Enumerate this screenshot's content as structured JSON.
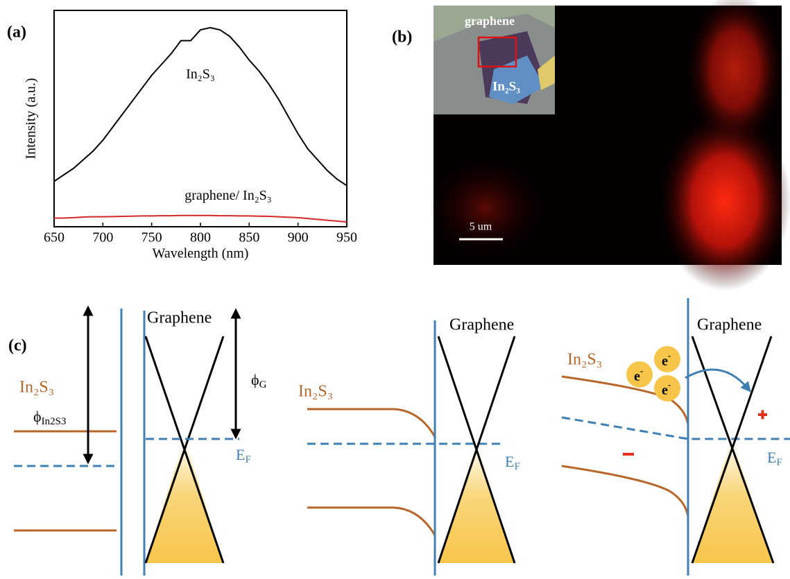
{
  "panel_labels": [
    "(a)",
    "(b)",
    "(c)"
  ],
  "chart_data": {
    "type": "line",
    "xlabel": "Wavelength (nm)",
    "ylabel": "Intensity (a.u.)",
    "x": [
      650,
      660,
      670,
      680,
      690,
      700,
      710,
      720,
      730,
      740,
      750,
      760,
      770,
      780,
      790,
      800,
      810,
      820,
      830,
      840,
      850,
      860,
      870,
      880,
      890,
      900,
      910,
      920,
      930,
      940,
      950
    ],
    "series": [
      {
        "name": "In₂S₃",
        "color": "#000000",
        "values": [
          21,
          24,
          27,
          31,
          35,
          40,
          46,
          52,
          58,
          64,
          70,
          75,
          80,
          86,
          86,
          91,
          92,
          91,
          88,
          83,
          77,
          72,
          66,
          59,
          51,
          43,
          36,
          31,
          26,
          22,
          19
        ]
      },
      {
        "name": "graphene/ In₂S₃",
        "color": "#d62728",
        "values": [
          4,
          4,
          4.2,
          4.5,
          4.6,
          4.6,
          4.7,
          4.8,
          4.9,
          5,
          5,
          5.1,
          5.1,
          5.2,
          5.2,
          5.2,
          5.2,
          5.1,
          5.1,
          5,
          5,
          4.9,
          4.8,
          4.6,
          4.4,
          4.2,
          3.8,
          3.4,
          3,
          2.6,
          2.2
        ]
      }
    ],
    "xlim": [
      650,
      950
    ],
    "xticks": [
      650,
      700,
      750,
      800,
      850,
      900,
      950
    ],
    "ylim": [
      0,
      100
    ]
  },
  "micrograph": {
    "inset_labels": [
      "graphene",
      "In₂S₃"
    ],
    "scale_bar": "5 um"
  },
  "diagrams": [
    {
      "material": "In₂S₃",
      "graphene": "Graphene",
      "phi_semiconductor": {
        "main": "ϕ",
        "sub": "In2S3"
      },
      "phi_graphene": {
        "main": "ϕ",
        "sub": "G"
      },
      "fermi": {
        "main": "E",
        "sub": "F"
      }
    },
    {
      "material": "In₂S₃",
      "graphene": "Graphene",
      "fermi": {
        "main": "E",
        "sub": "F"
      }
    },
    {
      "material": "In₂S₃",
      "graphene": "Graphene",
      "fermi": {
        "main": "E",
        "sub": "F"
      },
      "electrons": [
        {
          "main": "e",
          "sup": "-"
        },
        {
          "main": "e",
          "sup": "-"
        },
        {
          "main": "e",
          "sup": "-"
        }
      ]
    }
  ]
}
